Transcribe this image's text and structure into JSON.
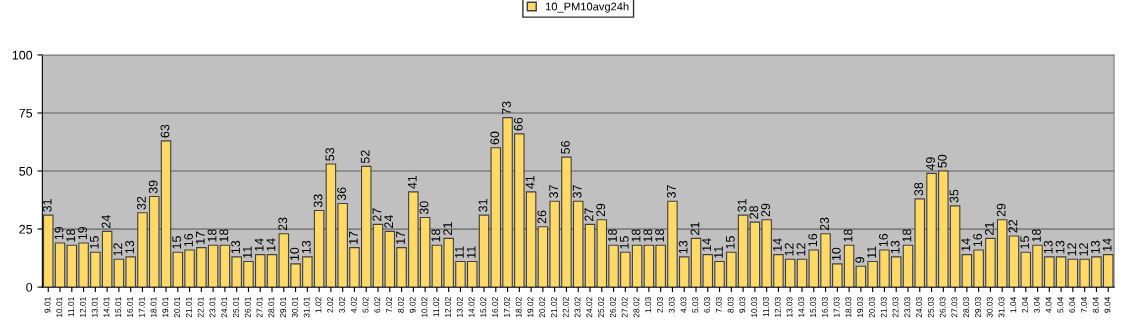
{
  "chart_data": {
    "type": "bar",
    "categories": [
      "9.01",
      "10.01",
      "11.01",
      "12.01",
      "13.01",
      "14.01",
      "15.01",
      "16.01",
      "17.01",
      "18.01",
      "19.01",
      "20.01",
      "21.01",
      "22.01",
      "23.01",
      "24.01",
      "25.01",
      "26.01",
      "27.01",
      "28.01",
      "29.01",
      "30.01",
      "31.01",
      "1.02",
      "2.02",
      "3.02",
      "4.02",
      "5.02",
      "6.02",
      "7.02",
      "8.02",
      "9.02",
      "10.02",
      "11.02",
      "12.02",
      "13.02",
      "14.02",
      "15.02",
      "16.02",
      "17.02",
      "18.02",
      "19.02",
      "20.02",
      "21.02",
      "22.02",
      "23.02",
      "24.02",
      "25.02",
      "26.02",
      "27.02",
      "28.02",
      "1.03",
      "2.03",
      "3.03",
      "4.03",
      "5.03",
      "6.03",
      "7.03",
      "8.03",
      "9.03",
      "10.03",
      "11.03",
      "12.03",
      "13.03",
      "14.03",
      "15.03",
      "16.03",
      "17.03",
      "18.03",
      "19.03",
      "20.03",
      "21.03",
      "22.03",
      "23.03",
      "24.03",
      "25.03",
      "26.03",
      "27.03",
      "28.03",
      "29.03",
      "30.03",
      "31.03",
      "1.04",
      "2.04",
      "3.04",
      "4.04",
      "5.04",
      "6.04",
      "7.04",
      "8.04",
      "9.04"
    ],
    "series": [
      {
        "name": "10_PM10avg24h",
        "color": "#ffd966",
        "values": [
          31,
          19,
          18,
          19,
          15,
          24,
          12,
          13,
          32,
          39,
          63,
          15,
          16,
          17,
          18,
          18,
          13,
          11,
          14,
          14,
          23,
          10,
          13,
          33,
          53,
          36,
          17,
          52,
          27,
          24,
          17,
          41,
          30,
          18,
          21,
          11,
          11,
          31,
          60,
          73,
          66,
          41,
          26,
          37,
          56,
          37,
          27,
          29,
          18,
          15,
          18,
          18,
          18,
          37,
          13,
          21,
          14,
          11,
          15,
          31,
          28,
          29,
          14,
          12,
          12,
          16,
          23,
          10,
          18,
          9,
          11,
          16,
          13,
          18,
          38,
          49,
          50,
          35,
          14,
          16,
          21,
          29,
          22,
          15,
          18,
          13,
          13,
          12,
          12,
          13,
          14
        ]
      }
    ],
    "ylim": [
      0,
      100
    ],
    "yticks": [
      0,
      25,
      50,
      75,
      100
    ],
    "grid": "y",
    "legend": "top",
    "data_labels": true
  }
}
